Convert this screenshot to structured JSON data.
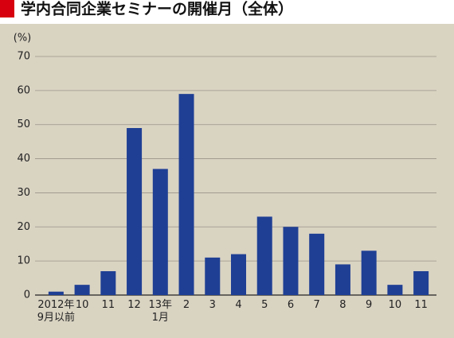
{
  "chart_data": {
    "type": "bar",
    "title": "学内合同企業セミナーの開催月（全体）",
    "y_unit": "(%)",
    "categories": [
      "2012年\n9月以前",
      "10",
      "11",
      "12",
      "13年\n1月",
      "2",
      "3",
      "4",
      "5",
      "6",
      "7",
      "8",
      "9",
      "10",
      "11"
    ],
    "values": [
      1,
      3,
      7,
      49,
      37,
      59,
      11,
      12,
      23,
      20,
      18,
      9,
      13,
      3,
      7
    ],
    "color": "#1f3f94",
    "ylim": [
      0,
      70
    ],
    "yticks": [
      0,
      10,
      20,
      30,
      40,
      50,
      60,
      70
    ],
    "grid": true
  }
}
